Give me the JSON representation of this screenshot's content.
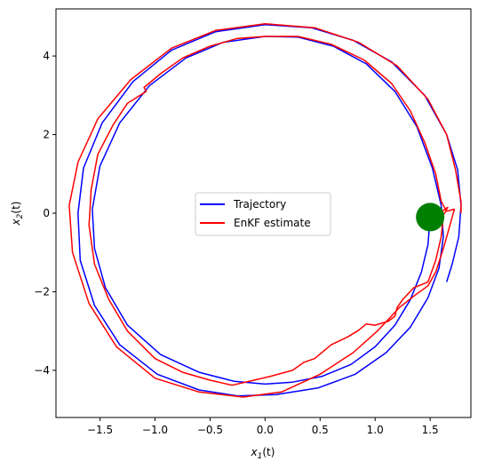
{
  "chart_data": {
    "type": "line",
    "title": "",
    "xlabel_main": "x",
    "xlabel_sub": "1",
    "xlabel_tail": "(t)",
    "ylabel_main": "x",
    "ylabel_sub": "2",
    "ylabel_tail": "(t)",
    "xlim": [
      -1.9,
      1.87
    ],
    "ylim": [
      -5.2,
      5.2
    ],
    "xticks": [
      -1.5,
      -1.0,
      -0.5,
      0.0,
      0.5,
      1.0,
      1.5
    ],
    "xtick_labels": [
      "−1.5",
      "−1.0",
      "−0.5",
      "0.0",
      "0.5",
      "1.0",
      "1.5"
    ],
    "yticks": [
      -4,
      -2,
      0,
      2,
      4
    ],
    "ytick_labels": [
      "−4",
      "−2",
      "0",
      "2",
      "4"
    ],
    "legend_placement": "center",
    "grid": false,
    "series": [
      {
        "name": "Trajectory",
        "color": "#0000ff",
        "points": [
          [
            1.5,
            -0.1
          ],
          [
            1.48,
            -0.8
          ],
          [
            1.42,
            -1.5
          ],
          [
            1.32,
            -2.2
          ],
          [
            1.18,
            -2.85
          ],
          [
            1.0,
            -3.4
          ],
          [
            0.78,
            -3.85
          ],
          [
            0.52,
            -4.15
          ],
          [
            0.25,
            -4.3
          ],
          [
            0.0,
            -4.35
          ],
          [
            -0.28,
            -4.28
          ],
          [
            -0.6,
            -4.05
          ],
          [
            -0.95,
            -3.6
          ],
          [
            -1.25,
            -2.85
          ],
          [
            -1.45,
            -1.9
          ],
          [
            -1.55,
            -0.9
          ],
          [
            -1.57,
            0.1
          ],
          [
            -1.5,
            1.2
          ],
          [
            -1.32,
            2.3
          ],
          [
            -1.05,
            3.25
          ],
          [
            -0.72,
            3.95
          ],
          [
            -0.38,
            4.35
          ],
          [
            0.0,
            4.5
          ],
          [
            0.3,
            4.48
          ],
          [
            0.62,
            4.25
          ],
          [
            0.92,
            3.8
          ],
          [
            1.18,
            3.1
          ],
          [
            1.38,
            2.2
          ],
          [
            1.52,
            1.15
          ],
          [
            1.6,
            0.2
          ],
          [
            1.62,
            -0.6
          ],
          [
            1.58,
            -1.4
          ],
          [
            1.48,
            -2.15
          ],
          [
            1.32,
            -2.9
          ],
          [
            1.1,
            -3.55
          ],
          [
            0.82,
            -4.1
          ],
          [
            0.48,
            -4.45
          ],
          [
            0.1,
            -4.62
          ],
          [
            -0.25,
            -4.65
          ],
          [
            -0.6,
            -4.5
          ],
          [
            -0.98,
            -4.1
          ],
          [
            -1.32,
            -3.35
          ],
          [
            -1.55,
            -2.35
          ],
          [
            -1.68,
            -1.2
          ],
          [
            -1.7,
            0.0
          ],
          [
            -1.65,
            1.15
          ],
          [
            -1.48,
            2.3
          ],
          [
            -1.2,
            3.35
          ],
          [
            -0.85,
            4.15
          ],
          [
            -0.45,
            4.62
          ],
          [
            0.0,
            4.8
          ],
          [
            0.42,
            4.72
          ],
          [
            0.8,
            4.4
          ],
          [
            1.15,
            3.85
          ],
          [
            1.45,
            3.0
          ],
          [
            1.65,
            2.0
          ],
          [
            1.75,
            1.1
          ],
          [
            1.78,
            0.2
          ],
          [
            1.76,
            -0.6
          ],
          [
            1.7,
            -1.3
          ],
          [
            1.65,
            -1.75
          ]
        ]
      },
      {
        "name": "EnKF estimate",
        "color": "#ff0000",
        "points": [
          [
            1.5,
            -0.1
          ],
          [
            1.58,
            0.0
          ],
          [
            1.66,
            0.15
          ],
          [
            1.62,
            -0.05
          ],
          [
            1.6,
            -0.6
          ],
          [
            1.55,
            -1.2
          ],
          [
            1.48,
            -1.75
          ],
          [
            1.35,
            -1.9
          ],
          [
            1.25,
            -2.2
          ],
          [
            1.2,
            -2.4
          ],
          [
            1.18,
            -2.62
          ],
          [
            1.12,
            -2.75
          ],
          [
            1.0,
            -2.85
          ],
          [
            0.92,
            -2.82
          ],
          [
            0.85,
            -2.98
          ],
          [
            0.75,
            -3.15
          ],
          [
            0.6,
            -3.35
          ],
          [
            0.45,
            -3.7
          ],
          [
            0.35,
            -3.8
          ],
          [
            0.25,
            -4.0
          ],
          [
            0.05,
            -4.15
          ],
          [
            -0.1,
            -4.25
          ],
          [
            -0.3,
            -4.38
          ],
          [
            -0.5,
            -4.25
          ],
          [
            -0.75,
            -4.05
          ],
          [
            -1.0,
            -3.7
          ],
          [
            -1.25,
            -3.0
          ],
          [
            -1.42,
            -2.2
          ],
          [
            -1.55,
            -1.3
          ],
          [
            -1.6,
            -0.3
          ],
          [
            -1.58,
            0.6
          ],
          [
            -1.52,
            1.5
          ],
          [
            -1.38,
            2.25
          ],
          [
            -1.25,
            2.8
          ],
          [
            -1.08,
            3.1
          ],
          [
            -1.1,
            3.2
          ],
          [
            -0.95,
            3.55
          ],
          [
            -0.75,
            3.95
          ],
          [
            -0.5,
            4.25
          ],
          [
            -0.25,
            4.45
          ],
          [
            0.0,
            4.5
          ],
          [
            0.3,
            4.5
          ],
          [
            0.6,
            4.3
          ],
          [
            0.9,
            3.9
          ],
          [
            1.15,
            3.3
          ],
          [
            1.32,
            2.6
          ],
          [
            1.45,
            1.8
          ],
          [
            1.55,
            1.0
          ],
          [
            1.6,
            0.3
          ],
          [
            1.65,
            0.05
          ],
          [
            1.72,
            0.1
          ],
          [
            1.68,
            -0.3
          ],
          [
            1.62,
            -0.9
          ],
          [
            1.55,
            -1.5
          ],
          [
            1.48,
            -1.85
          ],
          [
            1.38,
            -2.05
          ],
          [
            1.22,
            -2.4
          ],
          [
            1.02,
            -3.0
          ],
          [
            0.8,
            -3.55
          ],
          [
            0.5,
            -4.1
          ],
          [
            0.15,
            -4.55
          ],
          [
            -0.2,
            -4.68
          ],
          [
            -0.6,
            -4.55
          ],
          [
            -1.0,
            -4.2
          ],
          [
            -1.35,
            -3.4
          ],
          [
            -1.6,
            -2.3
          ],
          [
            -1.75,
            -1.0
          ],
          [
            -1.78,
            0.2
          ],
          [
            -1.7,
            1.3
          ],
          [
            -1.52,
            2.4
          ],
          [
            -1.22,
            3.4
          ],
          [
            -0.85,
            4.2
          ],
          [
            -0.45,
            4.65
          ],
          [
            0.0,
            4.82
          ],
          [
            0.45,
            4.72
          ],
          [
            0.85,
            4.35
          ],
          [
            1.2,
            3.75
          ],
          [
            1.48,
            2.9
          ],
          [
            1.65,
            2.0
          ],
          [
            1.73,
            1.1
          ],
          [
            1.78,
            0.3
          ],
          [
            1.78,
            0.0
          ]
        ]
      }
    ],
    "marker": {
      "x": 1.5,
      "y": -0.1,
      "color": "#008000"
    }
  }
}
